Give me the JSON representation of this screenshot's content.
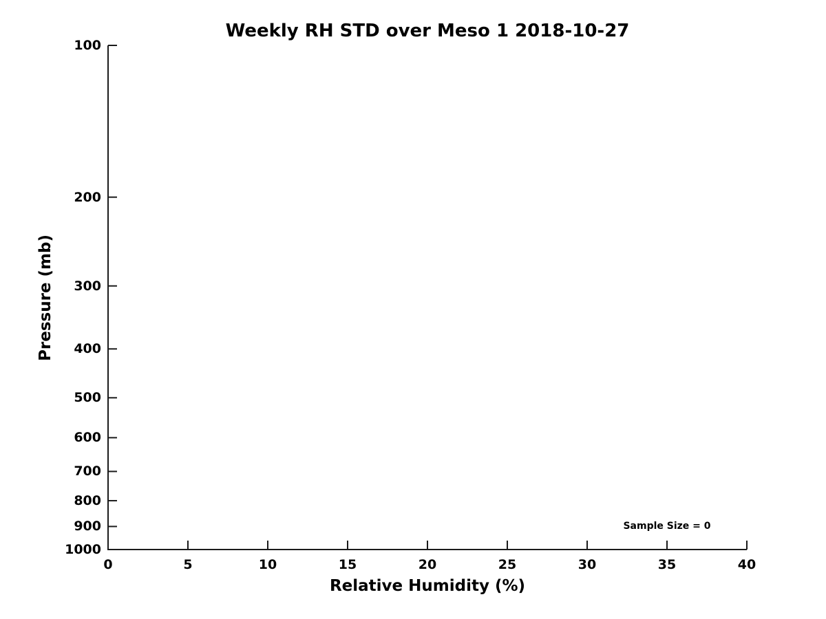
{
  "chart_data": {
    "type": "line",
    "title": "Weekly RH STD over Meso 1 2018-10-27",
    "xlabel": "Relative Humidity (%)",
    "ylabel": "Pressure (mb)",
    "xlim": [
      0,
      40
    ],
    "ylim": [
      100,
      1000
    ],
    "xscale": "linear",
    "yscale": "log",
    "y_inverted": true,
    "xticks": [
      0,
      5,
      10,
      15,
      20,
      25,
      30,
      35,
      40
    ],
    "yticks": [
      100,
      200,
      300,
      400,
      500,
      600,
      700,
      800,
      900,
      1000
    ],
    "grid": false,
    "legend": null,
    "series": [],
    "annotations": [
      {
        "text": "Sample Size = 0",
        "x": 35,
        "y": 900
      }
    ],
    "colors": {
      "axis": "#1a1a1a",
      "text": "#000000",
      "background": "#ffffff"
    }
  }
}
